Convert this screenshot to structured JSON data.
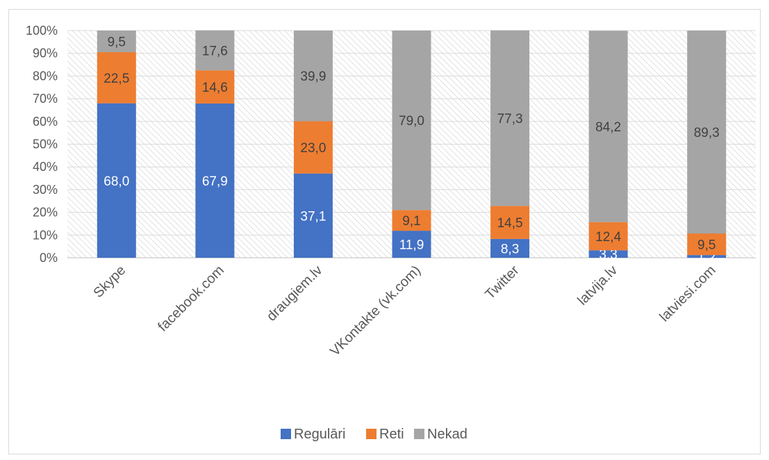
{
  "chart_data": {
    "type": "bar",
    "stacked": true,
    "percent_stacked": true,
    "title": "",
    "xlabel": "",
    "ylabel": "",
    "ylim": [
      0,
      100
    ],
    "yticks": [
      "0%",
      "10%",
      "20%",
      "30%",
      "40%",
      "50%",
      "60%",
      "70%",
      "80%",
      "90%",
      "100%"
    ],
    "categories": [
      "Skype",
      "facebook.com",
      "draugiem.lv",
      "VKontakte (vk.com)",
      "Twitter",
      "latvija.lv",
      "latviesi.com"
    ],
    "series": [
      {
        "name": "Regulāri",
        "color": "#4472c4",
        "values": [
          68.0,
          67.9,
          37.1,
          11.9,
          8.3,
          3.3,
          1.2
        ],
        "labels": [
          "68,0",
          "67,9",
          "37,1",
          "11,9",
          "8,3",
          "3,3",
          "1,2"
        ]
      },
      {
        "name": "Reti",
        "color": "#ed7d31",
        "values": [
          22.5,
          14.6,
          23.0,
          9.1,
          14.5,
          12.4,
          9.5
        ],
        "labels": [
          "22,5",
          "14,6",
          "23,0",
          "9,1",
          "14,5",
          "12,4",
          "9,5"
        ]
      },
      {
        "name": "Nekad",
        "color": "#a5a5a5",
        "values": [
          9.5,
          17.6,
          39.9,
          79.0,
          77.3,
          84.2,
          89.3
        ],
        "labels": [
          "9,5",
          "17,6",
          "39,9",
          "79,0",
          "77,3",
          "84,2",
          "89,3"
        ]
      }
    ],
    "label_colors": [
      "#ffffff",
      "#404040",
      "#404040"
    ],
    "legend_position": "bottom",
    "grid": true,
    "plot_background": "diagonal-hatch"
  }
}
